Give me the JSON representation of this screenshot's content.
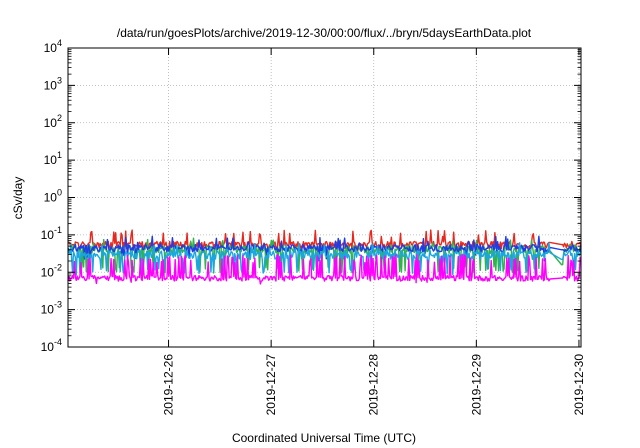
{
  "chart_data": {
    "type": "line",
    "title": "/data/run/goesPlots/archive/2019-12-30/00:00/flux/../bryn/5daysEarthData.plot",
    "xlabel": "Coordinated Universal Time (UTC)",
    "ylabel": "cSv/day",
    "y_scale": "log",
    "ylim_exp": [
      -4,
      4
    ],
    "ytick_exponents": [
      "-4",
      "-3",
      "-2",
      "-1",
      "0",
      "1",
      "2",
      "3",
      "4"
    ],
    "ytick_base": "10",
    "xlim_days": [
      -0.98,
      4.02
    ],
    "xticks": [
      {
        "label": "2019-12-26",
        "day": 0
      },
      {
        "label": "2019-12-27",
        "day": 1
      },
      {
        "label": "2019-12-28",
        "day": 2
      },
      {
        "label": "2019-12-29",
        "day": 3
      },
      {
        "label": "2019-12-30",
        "day": 4
      }
    ],
    "grid": true,
    "legend": "none",
    "series": [
      {
        "color": "#e8281e",
        "base": 0.055,
        "noise": 0.012,
        "spike_prob": 0.05,
        "spike_mult": 1.9,
        "dip_prob": 0.02,
        "dip_mult": 0.7,
        "tail": 0.055
      },
      {
        "color": "#2fb34a",
        "base": 0.042,
        "noise": 0.01,
        "spike_prob": 0.04,
        "spike_mult": 1.5,
        "dip_prob": 0.12,
        "dip_mult": 0.28,
        "tail": 0.016
      },
      {
        "color": "#1e3ce8",
        "base": 0.045,
        "noise": 0.01,
        "spike_prob": 0.05,
        "spike_mult": 1.6,
        "dip_prob": 0.04,
        "dip_mult": 0.55,
        "tail": 0.04
      },
      {
        "color": "#1aa6e0",
        "base": 0.03,
        "noise": 0.008,
        "spike_prob": 0.05,
        "spike_mult": 1.6,
        "dip_prob": 0.12,
        "dip_mult": 0.35,
        "tail": 0.022
      },
      {
        "color": "#ff00ff",
        "base": 0.007,
        "noise": 0.0012,
        "spike_prob": 0.18,
        "spike_mult": 3.2,
        "dip_prob": 0.02,
        "dip_mult": 0.85,
        "tail": 0.007
      }
    ]
  }
}
